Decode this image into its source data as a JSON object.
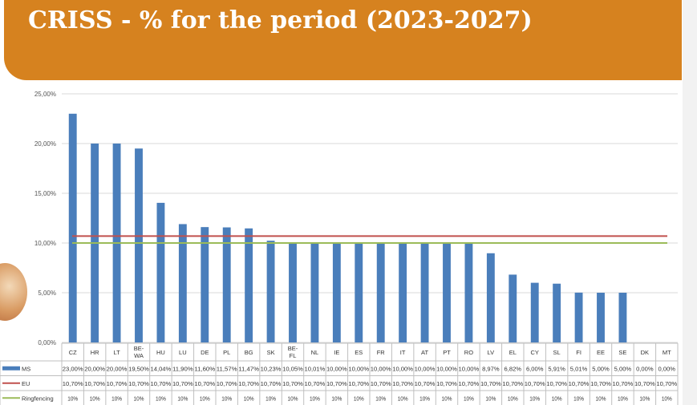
{
  "header": {
    "title": "CRISS - % for the period (2023-2027)"
  },
  "chart_data": {
    "type": "bar",
    "ylim": [
      0,
      25
    ],
    "yticks": [
      "0,00%",
      "5,00%",
      "10,00%",
      "15,00%",
      "20,00%",
      "25,00%"
    ],
    "grid": true,
    "categories": [
      "CZ",
      "HR",
      "LT",
      "BE-WA",
      "HU",
      "LU",
      "DE",
      "PL",
      "BG",
      "SK",
      "BE-FL",
      "NL",
      "IE",
      "ES",
      "FR",
      "IT",
      "AT",
      "PT",
      "RO",
      "LV",
      "EL",
      "CY",
      "SL",
      "FI",
      "EE",
      "SE",
      "DK",
      "MT"
    ],
    "series": [
      {
        "name": "MS",
        "kind": "bar",
        "color": "#4a7ebb",
        "values": [
          23.0,
          20.0,
          20.0,
          19.5,
          14.04,
          11.9,
          11.6,
          11.57,
          11.47,
          10.23,
          10.05,
          10.01,
          10.0,
          10.0,
          10.0,
          10.0,
          10.0,
          10.0,
          10.0,
          8.97,
          6.82,
          6.0,
          5.91,
          5.01,
          5.0,
          5.0,
          0.0,
          0.0
        ],
        "labels": [
          "23,00%",
          "20,00%",
          "20,00%",
          "19,50%",
          "14,04%",
          "11,90%",
          "11,60%",
          "11,57%",
          "11,47%",
          "10,23%",
          "10,05%",
          "10,01%",
          "10,00%",
          "10,00%",
          "10,00%",
          "10,00%",
          "10,00%",
          "10,00%",
          "10,00%",
          "8,97%",
          "6,82%",
          "6,00%",
          "5,91%",
          "5,01%",
          "5,00%",
          "5,00%",
          "0,00%",
          "0,00%"
        ]
      },
      {
        "name": "EU",
        "kind": "line",
        "color": "#c0504d",
        "values": [
          10.7,
          10.7,
          10.7,
          10.7,
          10.7,
          10.7,
          10.7,
          10.7,
          10.7,
          10.7,
          10.7,
          10.7,
          10.7,
          10.7,
          10.7,
          10.7,
          10.7,
          10.7,
          10.7,
          10.7,
          10.7,
          10.7,
          10.7,
          10.7,
          10.7,
          10.7,
          10.7,
          10.7
        ],
        "labels": [
          "10,70%",
          "10,70%",
          "10,70%",
          "10,70%",
          "10,70%",
          "10,70%",
          "10,70%",
          "10,70%",
          "10,70%",
          "10,70%",
          "10,70%",
          "10,70%",
          "10,70%",
          "10,70%",
          "10,70%",
          "10,70%",
          "10,70%",
          "10,70%",
          "10,70%",
          "10,70%",
          "10,70%",
          "10,70%",
          "10,70%",
          "10,70%",
          "10,70%",
          "10,70%",
          "10,70%",
          "10,70%"
        ]
      },
      {
        "name": "Ringfencing",
        "kind": "line",
        "color": "#9bbb59",
        "values": [
          10,
          10,
          10,
          10,
          10,
          10,
          10,
          10,
          10,
          10,
          10,
          10,
          10,
          10,
          10,
          10,
          10,
          10,
          10,
          10,
          10,
          10,
          10,
          10,
          10,
          10,
          10,
          10
        ],
        "labels": [
          "10%",
          "10%",
          "10%",
          "10%",
          "10%",
          "10%",
          "10%",
          "10%",
          "10%",
          "10%",
          "10%",
          "10%",
          "10%",
          "10%",
          "10%",
          "10%",
          "10%",
          "10%",
          "10%",
          "10%",
          "10%",
          "10%",
          "10%",
          "10%",
          "10%",
          "10%",
          "10%",
          "10%"
        ]
      }
    ]
  }
}
